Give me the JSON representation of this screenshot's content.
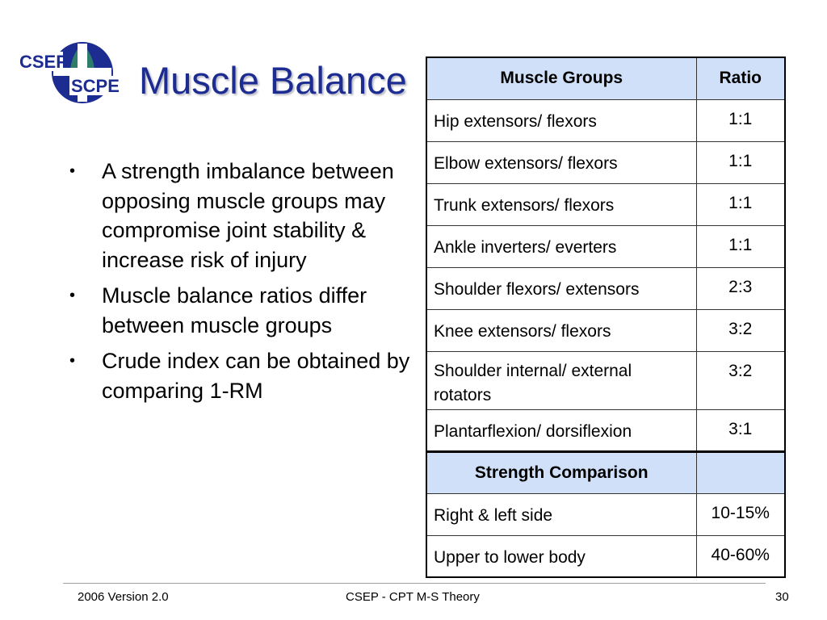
{
  "logo": {
    "text_top": "CSEP",
    "text_bottom": "SCPE"
  },
  "slide": {
    "title": "Muscle Balance",
    "bullets": [
      "A strength imbalance between opposing muscle groups may compromise joint stability & increase risk of injury",
      "Muscle balance ratios differ between muscle groups",
      "Crude index can be obtained by comparing 1-RM"
    ],
    "bullet_glyph": "•"
  },
  "table": {
    "headers": [
      "Muscle Groups",
      "Ratio"
    ],
    "rows": [
      [
        "Hip extensors/ flexors",
        "1:1"
      ],
      [
        "Elbow extensors/ flexors",
        "1:1"
      ],
      [
        "Trunk extensors/ flexors",
        "1:1"
      ],
      [
        "Ankle inverters/ everters",
        "1:1"
      ],
      [
        "Shoulder flexors/ extensors",
        "2:3"
      ],
      [
        "Knee extensors/ flexors",
        "3:2"
      ],
      [
        "Shoulder internal/ external rotators",
        "3:2"
      ],
      [
        "Plantarflexion/ dorsiflexion",
        "3:1"
      ]
    ],
    "section_header": "Strength Comparison",
    "section_rows": [
      [
        "Right & left side",
        "10-15%"
      ],
      [
        "Upper to lower body",
        "40-60%"
      ]
    ]
  },
  "footer": {
    "left": "2006 Version 2.0",
    "center": "CSEP - CPT M-S Theory",
    "page": "30"
  },
  "colors": {
    "title": "#1c2c90",
    "header_fill": "#cfe0f8",
    "logo_blue": "#1c2c90",
    "logo_green": "#2e7d6b"
  }
}
